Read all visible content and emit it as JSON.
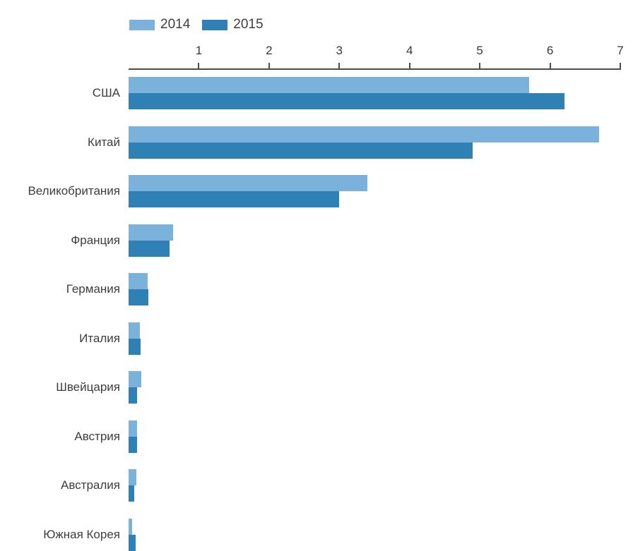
{
  "chart_data": {
    "type": "bar",
    "orientation": "horizontal",
    "title": "",
    "categories": [
      "США",
      "Китай",
      "Великобритания",
      "Франция",
      "Германия",
      "Италия",
      "Швейцария",
      "Австрия",
      "Австралия",
      "Южная Корея"
    ],
    "series": [
      {
        "name": "2014",
        "color": "#7AB2DC",
        "values": [
          5.7,
          6.7,
          3.4,
          0.63,
          0.27,
          0.16,
          0.18,
          0.12,
          0.11,
          0.05
        ]
      },
      {
        "name": "2015",
        "color": "#2F80B5",
        "values": [
          6.2,
          4.9,
          3.0,
          0.58,
          0.28,
          0.17,
          0.12,
          0.12,
          0.08,
          0.1
        ]
      }
    ],
    "xlim": [
      0,
      7
    ],
    "xticks": [
      "1",
      "2",
      "3",
      "4",
      "5",
      "6",
      "7"
    ],
    "legend_position": "top-left",
    "grid": false,
    "axis_color": "#4d4d4d",
    "label_color": "#3d3d3d"
  }
}
